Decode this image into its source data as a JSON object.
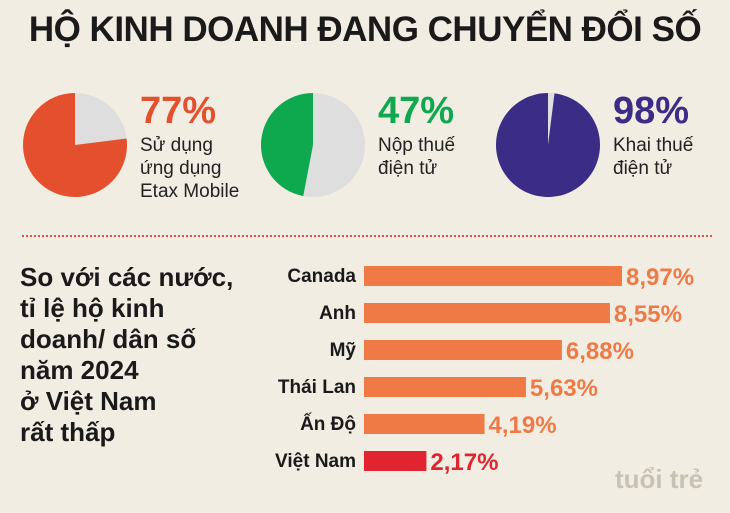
{
  "title": "HỘ KINH DOANH ĐANG CHUYỂN ĐỔI SỐ",
  "pies": [
    {
      "percent_label": "77%",
      "value": 77,
      "label_lines": [
        "Sử dụng",
        "ứng dụng",
        "Etax Mobile"
      ],
      "color": "#e4502d",
      "rest_color": "#dedede"
    },
    {
      "percent_label": "47%",
      "value": 47,
      "label_lines": [
        "Nộp thuế",
        "điện tử"
      ],
      "color": "#0ea94f",
      "rest_color": "#dedede"
    },
    {
      "percent_label": "98%",
      "value": 98,
      "label_lines": [
        "Khai thuế",
        "điện tử"
      ],
      "color": "#3b2d86",
      "rest_color": "#dedede"
    }
  ],
  "side_text_lines": [
    "So với các nước,",
    "tỉ lệ hộ kinh",
    "doanh/ dân số",
    "năm 2024",
    "ở Việt Nam",
    "rất thấp"
  ],
  "chart_data": {
    "type": "bar",
    "orientation": "horizontal",
    "categories": [
      "Canada",
      "Anh",
      "Mỹ",
      "Thái Lan",
      "Ấn Độ",
      "Việt Nam"
    ],
    "values": [
      8.97,
      8.55,
      6.88,
      5.63,
      4.19,
      2.17
    ],
    "value_labels": [
      "8,97%",
      "8,55%",
      "6,88%",
      "5,63%",
      "4,19%",
      "2,17%"
    ],
    "bar_colors": [
      "#f07a45",
      "#f07a45",
      "#f07a45",
      "#f07a45",
      "#f07a45",
      "#e02530"
    ],
    "label_colors": [
      "#f07a45",
      "#f07a45",
      "#f07a45",
      "#f07a45",
      "#f07a45",
      "#e02530"
    ],
    "xlim": [
      0,
      9.2
    ],
    "grid": false,
    "legend": "none"
  },
  "logo_text": "tuổi trẻ",
  "colors": {
    "background": "#f2ede3",
    "divider": "#e0533a",
    "logo": "#c9c2b4"
  }
}
